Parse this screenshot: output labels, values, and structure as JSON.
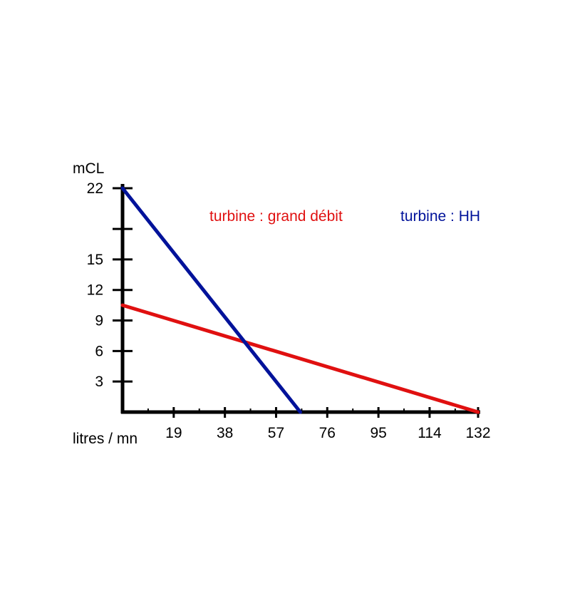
{
  "chart_data": {
    "type": "line",
    "ylabel": "mCL",
    "xlabel": "litres / mn",
    "x_ticks": [
      19,
      38,
      57,
      76,
      95,
      114,
      132
    ],
    "y_ticks": [
      3,
      6,
      9,
      12,
      15,
      22
    ],
    "xlim": [
      0,
      132
    ],
    "ylim": [
      0,
      22
    ],
    "grid": false,
    "legend_position": "top",
    "series": [
      {
        "name": "turbine : grand débit",
        "color": "#e01010",
        "points": [
          [
            0,
            10.5
          ],
          [
            132,
            0
          ]
        ]
      },
      {
        "name": "turbine : HH",
        "color": "#00129a",
        "points": [
          [
            0,
            22
          ],
          [
            66,
            0
          ]
        ]
      }
    ]
  }
}
